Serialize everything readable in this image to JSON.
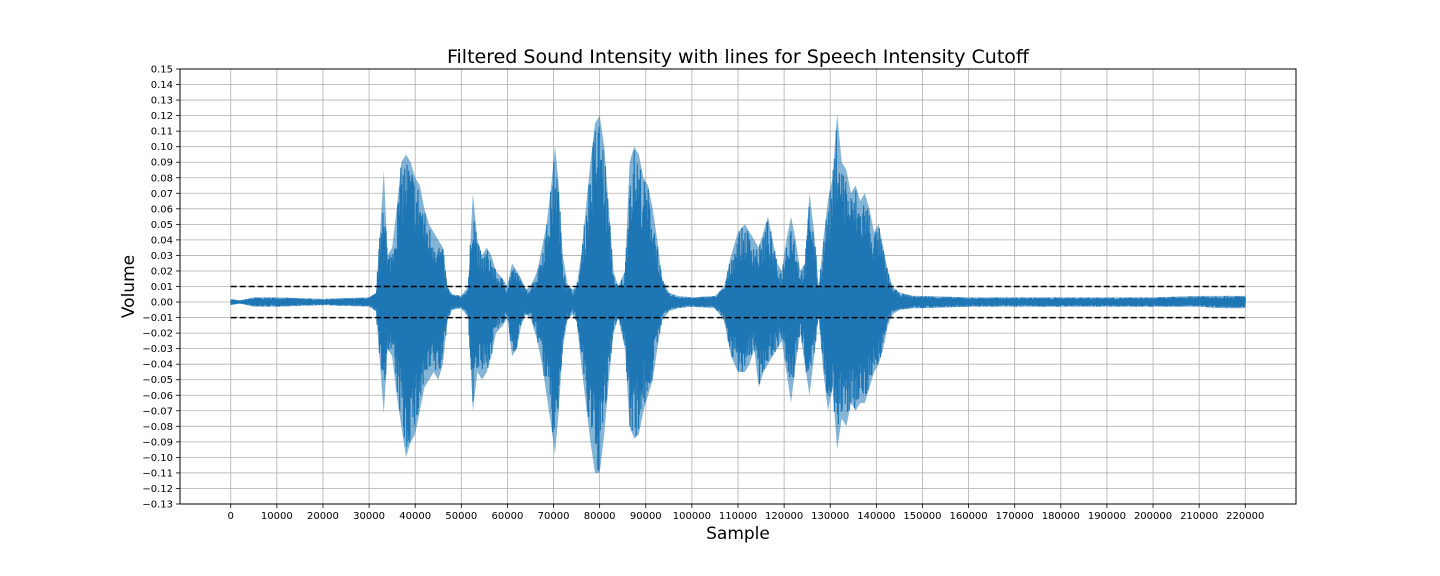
{
  "chart_data": {
    "type": "line",
    "title": "Filtered Sound Intensity with lines for Speech Intensity Cutoff",
    "xlabel": "Sample",
    "ylabel": "Volume",
    "xlim": [
      -11000,
      231000
    ],
    "ylim": [
      -0.13,
      0.15
    ],
    "x_ticks": [
      0,
      10000,
      20000,
      30000,
      40000,
      50000,
      60000,
      70000,
      80000,
      90000,
      100000,
      110000,
      120000,
      130000,
      140000,
      150000,
      160000,
      170000,
      180000,
      190000,
      200000,
      210000,
      220000
    ],
    "y_ticks": [
      -0.13,
      -0.12,
      -0.11,
      -0.1,
      -0.09,
      -0.08,
      -0.07,
      -0.06,
      -0.05,
      -0.04,
      -0.03,
      -0.02,
      -0.01,
      0.0,
      0.01,
      0.02,
      0.03,
      0.04,
      0.05,
      0.06,
      0.07,
      0.08,
      0.09,
      0.1,
      0.11,
      0.12,
      0.13,
      0.14,
      0.15
    ],
    "grid": true,
    "series": [
      {
        "color": "#1f77b4",
        "envelope_note": "dense waveform; upper/lower amplitude envelope sampled at x positions",
        "x": [
          0,
          2000,
          5000,
          10000,
          20000,
          30000,
          31500,
          32500,
          33200,
          34000,
          35000,
          36000,
          37000,
          38000,
          39000,
          40000,
          41000,
          42000,
          43000,
          44000,
          45000,
          46000,
          47000,
          48000,
          50000,
          51500,
          52500,
          53500,
          54500,
          55500,
          56500,
          57500,
          59000,
          60000,
          61000,
          62000,
          63000,
          64000,
          65000,
          66500,
          67500,
          68500,
          69500,
          70300,
          71000,
          72000,
          73000,
          74000,
          75000,
          76000,
          77000,
          78000,
          79000,
          80000,
          81000,
          82000,
          83000,
          84000,
          85500,
          86500,
          87500,
          88500,
          89500,
          90500,
          91500,
          92500,
          93500,
          95000,
          97000,
          100000,
          105000,
          107000,
          108500,
          110000,
          111500,
          112500,
          113500,
          114500,
          115500,
          116500,
          117500,
          118500,
          119500,
          120500,
          121500,
          122500,
          123500,
          124500,
          125500,
          126500,
          127500,
          128500,
          129500,
          130500,
          131500,
          132500,
          133500,
          134500,
          135500,
          136500,
          137500,
          138500,
          139500,
          140500,
          141500,
          142500,
          143500,
          145000,
          148000,
          150000,
          160000,
          170000,
          180000,
          190000,
          200000,
          210000,
          215000,
          220000
        ],
        "upper": [
          0.002,
          0.001,
          0.003,
          0.003,
          0.002,
          0.003,
          0.006,
          0.05,
          0.085,
          0.03,
          0.035,
          0.06,
          0.09,
          0.095,
          0.09,
          0.08,
          0.075,
          0.06,
          0.05,
          0.045,
          0.04,
          0.035,
          0.01,
          0.005,
          0.004,
          0.01,
          0.07,
          0.04,
          0.03,
          0.035,
          0.03,
          0.02,
          0.015,
          0.01,
          0.025,
          0.02,
          0.015,
          0.008,
          0.01,
          0.02,
          0.035,
          0.05,
          0.075,
          0.1,
          0.08,
          0.03,
          0.012,
          0.008,
          0.01,
          0.03,
          0.06,
          0.09,
          0.115,
          0.12,
          0.1,
          0.06,
          0.02,
          0.01,
          0.02,
          0.09,
          0.1,
          0.095,
          0.08,
          0.075,
          0.06,
          0.04,
          0.015,
          0.006,
          0.004,
          0.003,
          0.004,
          0.01,
          0.03,
          0.045,
          0.05,
          0.045,
          0.04,
          0.035,
          0.045,
          0.055,
          0.04,
          0.025,
          0.02,
          0.04,
          0.055,
          0.04,
          0.02,
          0.025,
          0.07,
          0.045,
          0.01,
          0.04,
          0.065,
          0.08,
          0.121,
          0.09,
          0.085,
          0.07,
          0.075,
          0.065,
          0.07,
          0.06,
          0.045,
          0.05,
          0.035,
          0.02,
          0.01,
          0.006,
          0.004,
          0.004,
          0.003,
          0.003,
          0.003,
          0.003,
          0.003,
          0.004,
          0.004,
          0.004
        ],
        "lower": [
          -0.002,
          -0.001,
          -0.003,
          -0.003,
          -0.002,
          -0.003,
          -0.006,
          -0.045,
          -0.072,
          -0.03,
          -0.035,
          -0.06,
          -0.08,
          -0.1,
          -0.09,
          -0.085,
          -0.07,
          -0.055,
          -0.05,
          -0.045,
          -0.05,
          -0.04,
          -0.012,
          -0.005,
          -0.004,
          -0.01,
          -0.07,
          -0.045,
          -0.05,
          -0.045,
          -0.035,
          -0.02,
          -0.015,
          -0.01,
          -0.035,
          -0.03,
          -0.015,
          -0.008,
          -0.01,
          -0.025,
          -0.04,
          -0.06,
          -0.08,
          -0.098,
          -0.075,
          -0.03,
          -0.012,
          -0.008,
          -0.012,
          -0.04,
          -0.065,
          -0.09,
          -0.11,
          -0.11,
          -0.085,
          -0.05,
          -0.02,
          -0.01,
          -0.03,
          -0.08,
          -0.088,
          -0.085,
          -0.07,
          -0.06,
          -0.05,
          -0.03,
          -0.012,
          -0.006,
          -0.004,
          -0.003,
          -0.004,
          -0.012,
          -0.035,
          -0.045,
          -0.045,
          -0.04,
          -0.03,
          -0.055,
          -0.045,
          -0.04,
          -0.035,
          -0.03,
          -0.025,
          -0.045,
          -0.065,
          -0.04,
          -0.02,
          -0.04,
          -0.06,
          -0.035,
          -0.01,
          -0.045,
          -0.07,
          -0.055,
          -0.095,
          -0.075,
          -0.08,
          -0.065,
          -0.07,
          -0.065,
          -0.065,
          -0.055,
          -0.045,
          -0.04,
          -0.03,
          -0.015,
          -0.008,
          -0.005,
          -0.004,
          -0.004,
          -0.003,
          -0.003,
          -0.003,
          -0.003,
          -0.003,
          -0.003,
          -0.004,
          -0.004
        ]
      },
      {
        "color": "#000000",
        "style": "dashed",
        "x": [
          0,
          220000
        ],
        "y": [
          0.01,
          0.01
        ]
      },
      {
        "color": "#000000",
        "style": "dashed",
        "x": [
          0,
          220000
        ],
        "y": [
          -0.01,
          -0.01
        ]
      }
    ]
  }
}
